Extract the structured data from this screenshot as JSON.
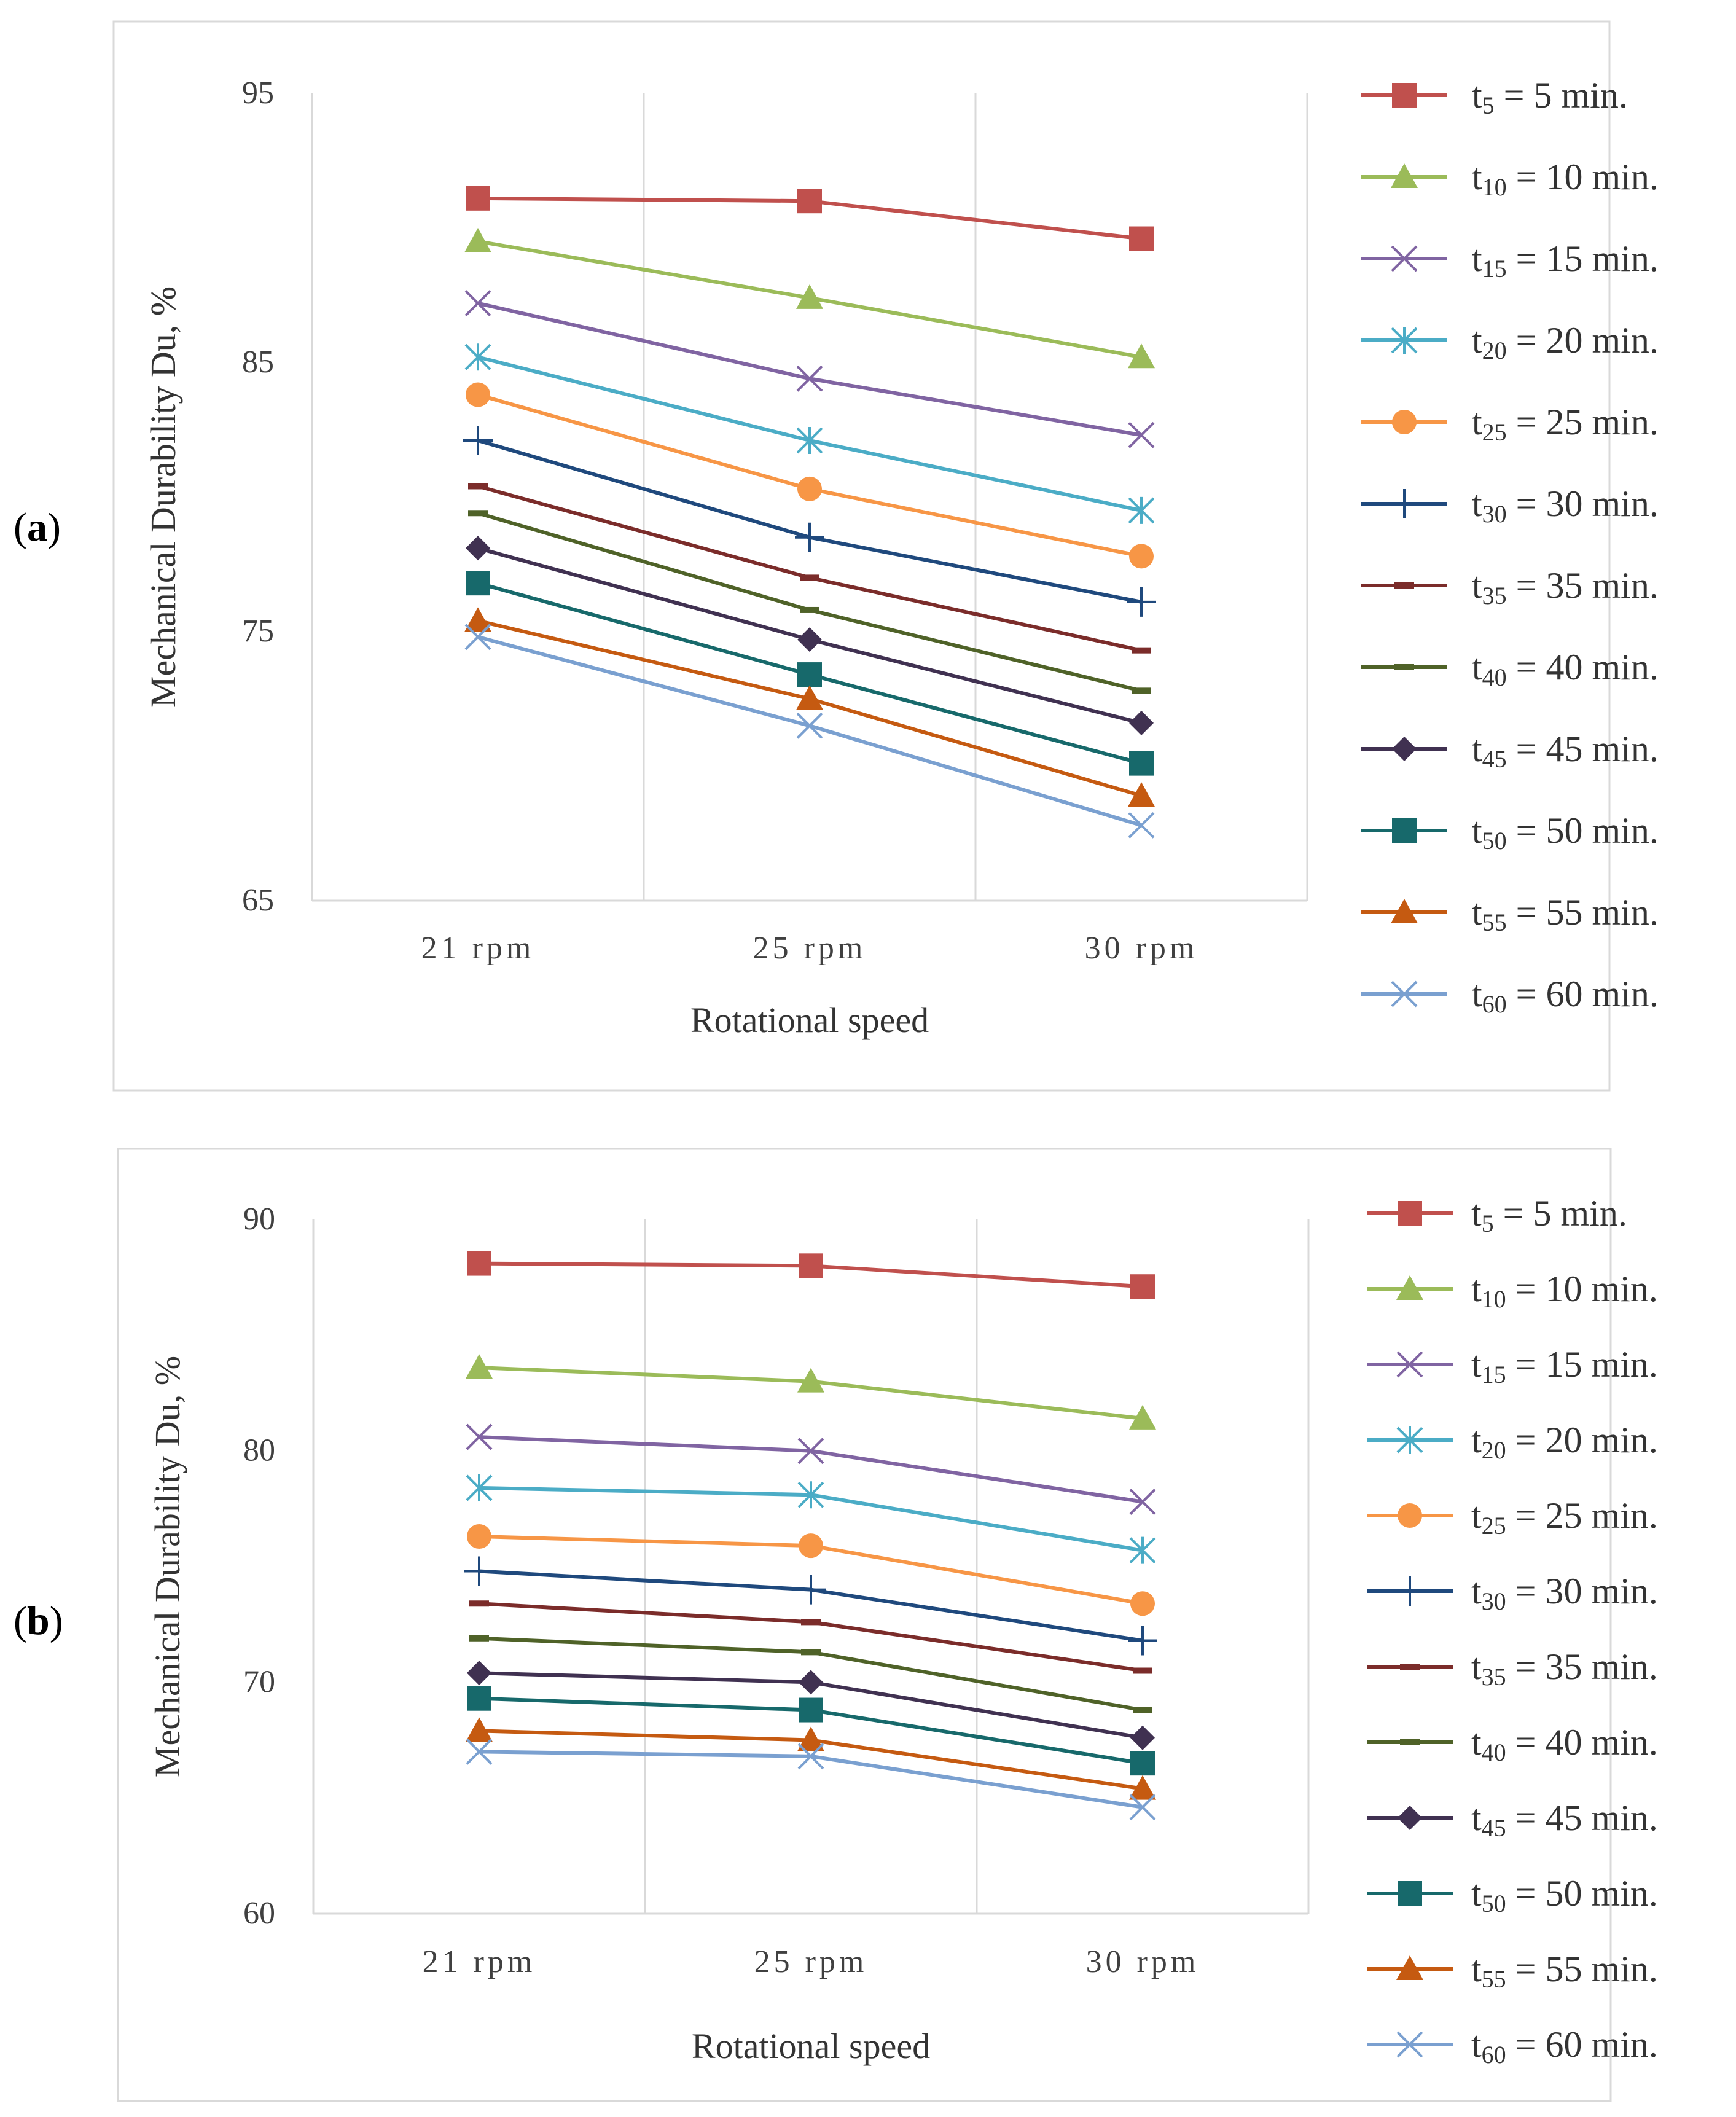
{
  "panels": [
    {
      "label_open": "(",
      "label_letter": "a",
      "label_close": ")"
    },
    {
      "label_open": "(",
      "label_letter": "b",
      "label_close": ")"
    }
  ],
  "chart_data": [
    {
      "type": "line",
      "panel": "a",
      "title": "",
      "xlabel": "Rotational speed",
      "ylabel": "Mechanical Durability Du, %",
      "categories": [
        "21 rpm",
        "25 rpm",
        "30 rpm"
      ],
      "ylim": [
        65,
        95
      ],
      "yticks": [
        65,
        75,
        85,
        95
      ],
      "grid": "vertical",
      "legend_position": "right",
      "series": [
        {
          "name": "t5 = 5 min.",
          "sub": "5",
          "value_text": " = 5 min.",
          "color": "#C0504D",
          "marker": "square",
          "values": [
            91.1,
            91.0,
            89.6
          ]
        },
        {
          "name": "t10 = 10 min.",
          "sub": "10",
          "value_text": " = 10 min.",
          "color": "#9BBB59",
          "marker": "triangle",
          "values": [
            89.5,
            87.4,
            85.2
          ]
        },
        {
          "name": "t15 = 15 min.",
          "sub": "15",
          "value_text": " = 15 min.",
          "color": "#8064A2",
          "marker": "x",
          "values": [
            87.2,
            84.4,
            82.3
          ]
        },
        {
          "name": "t20 = 20 min.",
          "sub": "20",
          "value_text": " = 20 min.",
          "color": "#4BACC6",
          "marker": "asterisk",
          "values": [
            85.2,
            82.1,
            79.5
          ]
        },
        {
          "name": "t25 = 25 min.",
          "sub": "25",
          "value_text": " = 25 min.",
          "color": "#F79646",
          "marker": "circle",
          "values": [
            83.8,
            80.3,
            77.8
          ]
        },
        {
          "name": "t30 = 30 min.",
          "sub": "30",
          "value_text": " = 30 min.",
          "color": "#1F497D",
          "marker": "plus",
          "values": [
            82.1,
            78.5,
            76.1
          ]
        },
        {
          "name": "t35 = 35 min.",
          "sub": "35",
          "value_text": " = 35 min.",
          "color": "#7B2C2A",
          "marker": "dash",
          "values": [
            80.4,
            77.0,
            74.3
          ]
        },
        {
          "name": "t40 = 40 min.",
          "sub": "40",
          "value_text": " = 40 min.",
          "color": "#4F6228",
          "marker": "dash",
          "values": [
            79.4,
            75.8,
            72.8
          ]
        },
        {
          "name": "t45 = 45 min.",
          "sub": "45",
          "value_text": " = 45 min.",
          "color": "#403151",
          "marker": "diamond",
          "values": [
            78.1,
            74.7,
            71.6
          ]
        },
        {
          "name": "t50 = 50 min.",
          "sub": "50",
          "value_text": " = 50 min.",
          "color": "#17696B",
          "marker": "square",
          "values": [
            76.8,
            73.4,
            70.1
          ]
        },
        {
          "name": "t55 = 55 min.",
          "sub": "55",
          "value_text": " = 55 min.",
          "color": "#C55A11",
          "marker": "triangle",
          "values": [
            75.4,
            72.5,
            68.9
          ]
        },
        {
          "name": "t60 = 60 min.",
          "sub": "60",
          "value_text": " = 60 min.",
          "color": "#7AA0D0",
          "marker": "x",
          "values": [
            74.8,
            71.5,
            67.8
          ]
        }
      ]
    },
    {
      "type": "line",
      "panel": "b",
      "title": "",
      "xlabel": "Rotational speed",
      "ylabel": "Mechanical Durability Du, %",
      "categories": [
        "21 rpm",
        "25 rpm",
        "30 rpm"
      ],
      "ylim": [
        60,
        90
      ],
      "yticks": [
        60,
        70,
        80,
        90
      ],
      "grid": "vertical",
      "legend_position": "right",
      "series": [
        {
          "name": "t5 = 5 min.",
          "sub": "5",
          "value_text": " = 5 min.",
          "color": "#C0504D",
          "marker": "square",
          "values": [
            88.1,
            88.0,
            87.1
          ]
        },
        {
          "name": "t10 = 10 min.",
          "sub": "10",
          "value_text": " = 10 min.",
          "color": "#9BBB59",
          "marker": "triangle",
          "values": [
            83.6,
            83.0,
            81.4
          ]
        },
        {
          "name": "t15 = 15 min.",
          "sub": "15",
          "value_text": " = 15 min.",
          "color": "#8064A2",
          "marker": "x",
          "values": [
            80.6,
            80.0,
            77.8
          ]
        },
        {
          "name": "t20 = 20 min.",
          "sub": "20",
          "value_text": " = 20 min.",
          "color": "#4BACC6",
          "marker": "asterisk",
          "values": [
            78.4,
            78.1,
            75.7
          ]
        },
        {
          "name": "t25 = 25 min.",
          "sub": "25",
          "value_text": " = 25 min.",
          "color": "#F79646",
          "marker": "circle",
          "values": [
            76.3,
            75.9,
            73.4
          ]
        },
        {
          "name": "t30 = 30 min.",
          "sub": "30",
          "value_text": " = 30 min.",
          "color": "#1F497D",
          "marker": "plus",
          "values": [
            74.8,
            74.0,
            71.8
          ]
        },
        {
          "name": "t35 = 35 min.",
          "sub": "35",
          "value_text": " = 35 min.",
          "color": "#7B2C2A",
          "marker": "dash",
          "values": [
            73.4,
            72.6,
            70.5
          ]
        },
        {
          "name": "t40 = 40 min.",
          "sub": "40",
          "value_text": " = 40 min.",
          "color": "#4F6228",
          "marker": "dash",
          "values": [
            71.9,
            71.3,
            68.8
          ]
        },
        {
          "name": "t45 = 45 min.",
          "sub": "45",
          "value_text": " = 45 min.",
          "color": "#403151",
          "marker": "diamond",
          "values": [
            70.4,
            70.0,
            67.6
          ]
        },
        {
          "name": "t50 = 50 min.",
          "sub": "50",
          "value_text": " = 50 min.",
          "color": "#17696B",
          "marker": "square",
          "values": [
            69.3,
            68.8,
            66.5
          ]
        },
        {
          "name": "t55 = 55 min.",
          "sub": "55",
          "value_text": " = 55 min.",
          "color": "#C55A11",
          "marker": "triangle",
          "values": [
            67.9,
            67.5,
            65.4
          ]
        },
        {
          "name": "t60 = 60 min.",
          "sub": "60",
          "value_text": " = 60 min.",
          "color": "#7AA0D0",
          "marker": "x",
          "values": [
            67.0,
            66.8,
            64.6
          ]
        }
      ]
    }
  ]
}
